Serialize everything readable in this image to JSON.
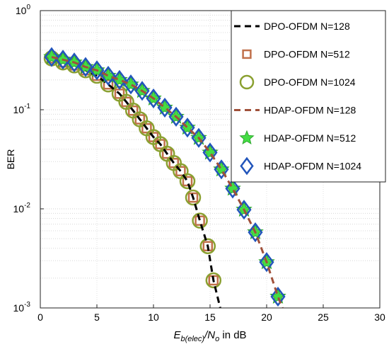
{
  "chart_data": {
    "type": "line",
    "ylabel": "BER",
    "xlabel": [
      "E",
      "b(elec)",
      "/N",
      "o",
      " in dB"
    ],
    "xlim": [
      0,
      30
    ],
    "xticks": [
      0,
      5,
      10,
      15,
      20,
      25,
      30
    ],
    "ylim": [
      0.001,
      1
    ],
    "yticks": [
      {
        "value": 0.001,
        "label": "10",
        "exponent": "-3"
      },
      {
        "value": 0.01,
        "label": "10",
        "exponent": "-2"
      },
      {
        "value": 0.1,
        "label": "10",
        "exponent": "-1"
      },
      {
        "value": 1,
        "label": "10",
        "exponent": "0"
      }
    ],
    "log_y": true,
    "grid": true,
    "legend": "upper right",
    "series": [
      {
        "name": "DPO-OFDM N=128",
        "color": "#000000",
        "style": "dashed",
        "x": [
          1,
          2,
          3,
          4,
          5,
          6,
          7,
          7.6,
          8.2,
          8.8,
          9.4,
          10,
          10.6,
          11.2,
          11.8,
          12.4,
          13,
          13.5,
          14.1,
          14.8,
          15.3,
          15.9
        ],
        "values": [
          0.33,
          0.3,
          0.28,
          0.25,
          0.22,
          0.18,
          0.145,
          0.12,
          0.098,
          0.08,
          0.065,
          0.053,
          0.045,
          0.036,
          0.029,
          0.024,
          0.019,
          0.013,
          0.0076,
          0.0042,
          0.0019,
          0.001
        ]
      },
      {
        "name": "DPO-OFDM N=512",
        "color": "#c0704a",
        "style": "square",
        "x": [
          1,
          2,
          3,
          4,
          5,
          6,
          7,
          7.6,
          8.2,
          8.8,
          9.4,
          10,
          10.6,
          11.2,
          11.8,
          12.4,
          13,
          13.5,
          14.1,
          14.8,
          15.3
        ],
        "values": [
          0.33,
          0.3,
          0.28,
          0.25,
          0.22,
          0.18,
          0.145,
          0.12,
          0.098,
          0.08,
          0.065,
          0.053,
          0.045,
          0.036,
          0.029,
          0.024,
          0.019,
          0.013,
          0.0076,
          0.0042,
          0.0019
        ]
      },
      {
        "name": "DPO-OFDM N=1024",
        "color": "#8aa030",
        "style": "circle",
        "x": [
          1,
          2,
          3,
          4,
          5,
          6,
          7,
          7.6,
          8.2,
          8.8,
          9.4,
          10,
          10.6,
          11.2,
          11.8,
          12.4,
          13,
          13.5,
          14.1,
          14.8,
          15.3
        ],
        "values": [
          0.33,
          0.3,
          0.28,
          0.25,
          0.22,
          0.18,
          0.145,
          0.12,
          0.098,
          0.08,
          0.065,
          0.053,
          0.045,
          0.036,
          0.029,
          0.024,
          0.019,
          0.013,
          0.0076,
          0.0042,
          0.0019
        ]
      },
      {
        "name": "HDAP-OFDM N=128",
        "color": "#a0503a",
        "style": "dashed",
        "x": [
          1,
          2,
          3,
          4,
          5,
          6,
          7,
          8,
          9,
          10,
          11,
          12,
          13,
          14,
          15,
          16,
          17,
          18,
          19,
          20,
          21,
          21.4
        ],
        "values": [
          0.34,
          0.32,
          0.3,
          0.27,
          0.25,
          0.22,
          0.2,
          0.18,
          0.155,
          0.13,
          0.105,
          0.085,
          0.066,
          0.052,
          0.037,
          0.025,
          0.016,
          0.0098,
          0.0058,
          0.0029,
          0.0013,
          0.001
        ]
      },
      {
        "name": "HDAP-OFDM N=512",
        "color": "#44dd44",
        "style": "star",
        "x": [
          1,
          2,
          3,
          4,
          5,
          6,
          7,
          8,
          9,
          10,
          11,
          12,
          13,
          14,
          15,
          16,
          17,
          18,
          19,
          20,
          21
        ],
        "values": [
          0.34,
          0.32,
          0.3,
          0.27,
          0.25,
          0.22,
          0.2,
          0.18,
          0.155,
          0.13,
          0.105,
          0.085,
          0.066,
          0.052,
          0.037,
          0.025,
          0.016,
          0.0098,
          0.0058,
          0.0029,
          0.0013
        ]
      },
      {
        "name": "HDAP-OFDM N=1024",
        "color": "#2255bb",
        "style": "diamond",
        "x": [
          1,
          2,
          3,
          4,
          5,
          6,
          7,
          8,
          9,
          10,
          11,
          12,
          13,
          14,
          15,
          16,
          17,
          18,
          19,
          20,
          21
        ],
        "values": [
          0.34,
          0.32,
          0.3,
          0.27,
          0.25,
          0.22,
          0.2,
          0.18,
          0.155,
          0.13,
          0.105,
          0.085,
          0.066,
          0.052,
          0.037,
          0.025,
          0.016,
          0.0098,
          0.0058,
          0.0029,
          0.0013
        ]
      }
    ]
  }
}
